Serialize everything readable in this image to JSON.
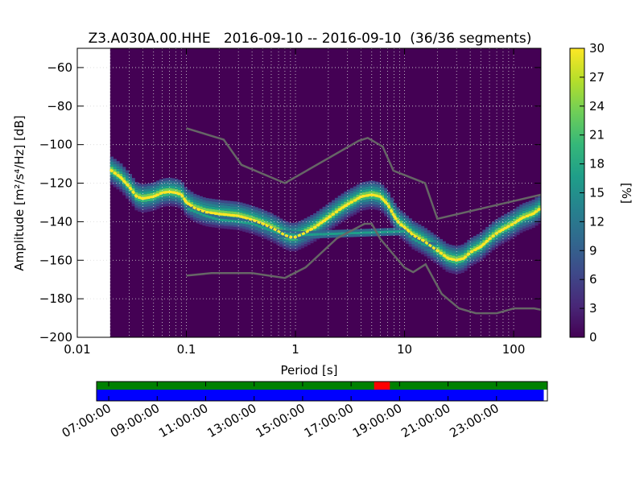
{
  "chart_data": [
    {
      "type": "heatmap",
      "title": "Z3.A030A.00.HHE   2016-09-10 -- 2016-09-10  (36/36 segments)",
      "xlabel": "Period [s]",
      "ylabel": "Amplitude [m²/s⁴/Hz] [dB]",
      "x_scale": "log",
      "xlim": [
        0.01,
        178
      ],
      "ylim": [
        -200,
        -50
      ],
      "grid": true,
      "x_ticks": [
        {
          "value": 0.01,
          "label": "0.01"
        },
        {
          "value": 0.1,
          "label": "0.1"
        },
        {
          "value": 1,
          "label": "1"
        },
        {
          "value": 10,
          "label": "10"
        },
        {
          "value": 100,
          "label": "100"
        }
      ],
      "y_ticks": [
        {
          "value": -60,
          "label": "−60"
        },
        {
          "value": -80,
          "label": "−80"
        },
        {
          "value": -100,
          "label": "−100"
        },
        {
          "value": -120,
          "label": "−120"
        },
        {
          "value": -140,
          "label": "−140"
        },
        {
          "value": -160,
          "label": "−160"
        },
        {
          "value": -180,
          "label": "−180"
        },
        {
          "value": -200,
          "label": "−200"
        }
      ],
      "data_start_period": 0.02,
      "colorbar": {
        "label": "[%]",
        "range": [
          0,
          30
        ],
        "ticks": [
          "0",
          "3",
          "6",
          "9",
          "12",
          "15",
          "18",
          "21",
          "24",
          "27",
          "30"
        ],
        "colors": [
          "#440154",
          "#482878",
          "#3e4989",
          "#31688e",
          "#26828e",
          "#1f9e89",
          "#35b779",
          "#6ece58",
          "#b5de2b",
          "#fde725"
        ]
      },
      "colors": {
        "background": "#440154",
        "noise_model": "#666666",
        "grid": "#d8d8d8"
      },
      "series": [
        {
          "role": "mode",
          "points": [
            [
              0.02,
              -113
            ],
            [
              0.025,
              -117
            ],
            [
              0.03,
              -122
            ],
            [
              0.035,
              -127
            ],
            [
              0.04,
              -128
            ],
            [
              0.05,
              -127
            ],
            [
              0.06,
              -125
            ],
            [
              0.07,
              -124.5
            ],
            [
              0.08,
              -125
            ],
            [
              0.09,
              -126
            ],
            [
              0.1,
              -130
            ],
            [
              0.12,
              -133
            ],
            [
              0.15,
              -135
            ],
            [
              0.2,
              -136
            ],
            [
              0.3,
              -137
            ],
            [
              0.4,
              -139
            ],
            [
              0.5,
              -141
            ],
            [
              0.6,
              -143
            ],
            [
              0.7,
              -145
            ],
            [
              0.8,
              -147
            ],
            [
              0.9,
              -148
            ],
            [
              1.0,
              -148
            ],
            [
              1.2,
              -146
            ],
            [
              1.5,
              -143
            ],
            [
              2.0,
              -138
            ],
            [
              2.5,
              -134
            ],
            [
              3.0,
              -131
            ],
            [
              3.5,
              -129
            ],
            [
              4.0,
              -127
            ],
            [
              5.0,
              -126
            ],
            [
              6.0,
              -127
            ],
            [
              7.0,
              -131
            ],
            [
              8.0,
              -137
            ],
            [
              9.0,
              -141
            ],
            [
              10.0,
              -143
            ],
            [
              12.0,
              -147
            ],
            [
              15.0,
              -150
            ],
            [
              20.0,
              -155
            ],
            [
              25.0,
              -159
            ],
            [
              30.0,
              -160
            ],
            [
              35.0,
              -159
            ],
            [
              40.0,
              -156
            ],
            [
              50.0,
              -153
            ],
            [
              60.0,
              -149
            ],
            [
              70.0,
              -146
            ],
            [
              80.0,
              -144
            ],
            [
              100.0,
              -141
            ],
            [
              120.0,
              -138
            ],
            [
              150.0,
              -136
            ],
            [
              178.0,
              -133
            ]
          ]
        },
        {
          "role": "secondary-mode",
          "points": [
            [
              0.1,
              -133
            ],
            [
              0.15,
              -137
            ],
            [
              0.2,
              -139
            ],
            [
              0.3,
              -140
            ],
            [
              0.4,
              -141
            ],
            [
              0.5,
              -143
            ],
            [
              0.7,
              -146
            ],
            [
              1.0,
              -147
            ],
            [
              10.0,
              -145
            ],
            [
              12.0,
              -149
            ],
            [
              15.0,
              -152
            ],
            [
              20.0,
              -153
            ]
          ]
        },
        {
          "role": "new-high-noise-model",
          "points": [
            [
              0.1,
              -91.5
            ],
            [
              0.22,
              -97.4
            ],
            [
              0.32,
              -110.5
            ],
            [
              0.8,
              -120
            ],
            [
              3.8,
              -98
            ],
            [
              4.6,
              -96.5
            ],
            [
              6.3,
              -101
            ],
            [
              7.9,
              -113.5
            ],
            [
              15.4,
              -120
            ],
            [
              20,
              -138.5
            ],
            [
              354.8,
              -126
            ]
          ]
        },
        {
          "role": "new-low-noise-model",
          "points": [
            [
              0.1,
              -168
            ],
            [
              0.17,
              -166.7
            ],
            [
              0.4,
              -166.7
            ],
            [
              0.8,
              -169.2
            ],
            [
              1.24,
              -163.7
            ],
            [
              2.4,
              -148.6
            ],
            [
              4.3,
              -141.1
            ],
            [
              5.0,
              -141.1
            ],
            [
              6.0,
              -149
            ],
            [
              10.0,
              -163.8
            ],
            [
              12.0,
              -166.2
            ],
            [
              15.6,
              -162.1
            ],
            [
              21.9,
              -177.5
            ],
            [
              31.6,
              -185
            ],
            [
              45,
              -187.5
            ],
            [
              70,
              -187.5
            ],
            [
              101,
              -185
            ],
            [
              154,
              -185
            ],
            [
              178,
              -185.7
            ]
          ]
        }
      ]
    },
    {
      "type": "timeline",
      "time_ticks": [
        "07:00:00",
        "09:00:00",
        "11:00:00",
        "13:00:00",
        "15:00:00",
        "17:00:00",
        "19:00:00",
        "21:00:00",
        "23:00:00"
      ],
      "time_start_hours": 6.5,
      "time_end_hours": 25.1,
      "data_end_hours": 24.95,
      "gap_marker": {
        "start_hours": 17.95,
        "end_hours": 18.6
      },
      "colors": {
        "coverage": "#008000",
        "data": "#0000ff",
        "gap": "#ff0000"
      }
    }
  ]
}
